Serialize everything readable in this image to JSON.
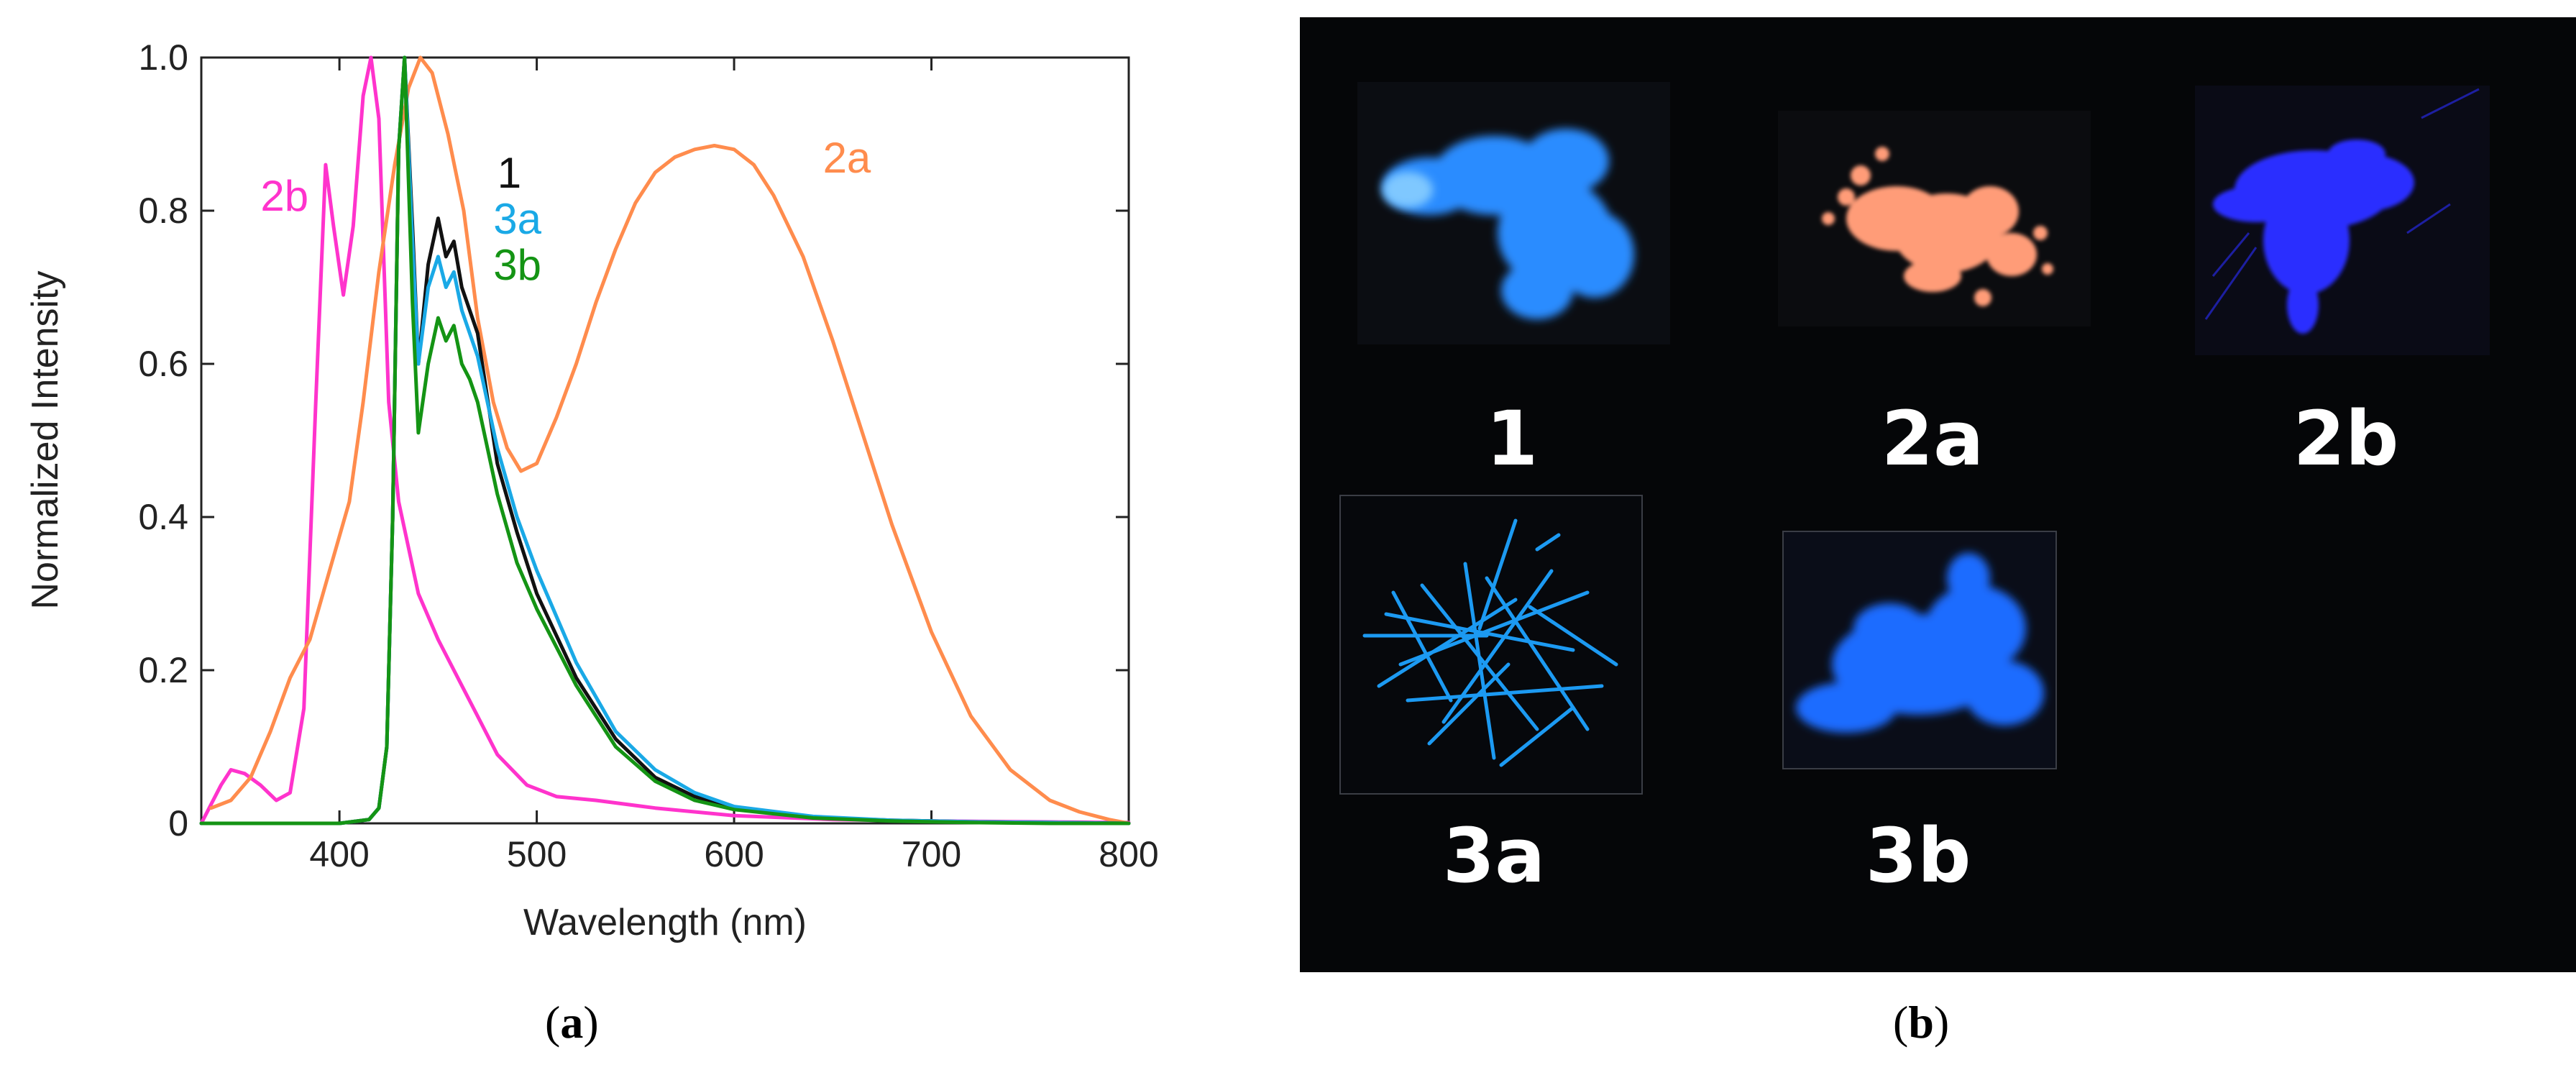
{
  "chart_data": {
    "type": "line",
    "xlabel": "Wavelength (nm)",
    "ylabel": "Normalized Intensity",
    "xlim": [
      330,
      800
    ],
    "ylim": [
      0,
      1.0
    ],
    "x_ticks": [
      400,
      500,
      600,
      700,
      800
    ],
    "y_ticks": [
      0,
      0.2,
      0.4,
      0.6,
      0.8,
      1.0
    ],
    "y_tick_labels": [
      "0",
      "0.2",
      "0.4",
      "0.6",
      "0.8",
      "1.0"
    ],
    "grid": false,
    "series": [
      {
        "name": "2b",
        "color": "#ff33cc",
        "x": [
          330,
          340,
          345,
          352,
          360,
          368,
          375,
          382,
          388,
          393,
          397,
          402,
          407,
          412,
          416,
          420,
          425,
          430,
          435,
          440,
          450,
          460,
          470,
          480,
          495,
          510,
          530,
          560,
          600,
          650,
          700,
          750,
          800
        ],
        "y": [
          0.0,
          0.05,
          0.07,
          0.065,
          0.05,
          0.03,
          0.04,
          0.15,
          0.55,
          0.86,
          0.78,
          0.69,
          0.78,
          0.95,
          1.0,
          0.92,
          0.55,
          0.42,
          0.36,
          0.3,
          0.24,
          0.19,
          0.14,
          0.09,
          0.05,
          0.035,
          0.03,
          0.02,
          0.01,
          0.005,
          0.003,
          0.002,
          0.001
        ]
      },
      {
        "name": "2a",
        "color": "#ff8c4d",
        "x": [
          335,
          345,
          355,
          365,
          375,
          385,
          395,
          405,
          412,
          420,
          428,
          435,
          441,
          447,
          455,
          463,
          470,
          478,
          485,
          492,
          500,
          510,
          520,
          530,
          540,
          550,
          560,
          570,
          580,
          590,
          600,
          610,
          620,
          635,
          650,
          665,
          680,
          700,
          720,
          740,
          760,
          775,
          790,
          800
        ],
        "y": [
          0.02,
          0.03,
          0.06,
          0.12,
          0.19,
          0.24,
          0.33,
          0.42,
          0.55,
          0.72,
          0.86,
          0.96,
          1.0,
          0.98,
          0.9,
          0.8,
          0.66,
          0.55,
          0.49,
          0.46,
          0.47,
          0.53,
          0.6,
          0.68,
          0.75,
          0.81,
          0.85,
          0.87,
          0.88,
          0.885,
          0.88,
          0.86,
          0.82,
          0.74,
          0.63,
          0.51,
          0.39,
          0.25,
          0.14,
          0.07,
          0.03,
          0.015,
          0.005,
          0.0
        ]
      },
      {
        "name": "1",
        "color": "#111111",
        "x": [
          330,
          400,
          415,
          420,
          424,
          427,
          430,
          433,
          437,
          440,
          445,
          450,
          454,
          458,
          462,
          466,
          470,
          480,
          490,
          500,
          520,
          540,
          560,
          580,
          600,
          640,
          680,
          720,
          760,
          800
        ],
        "y": [
          0.0,
          0.0,
          0.005,
          0.02,
          0.1,
          0.4,
          0.88,
          1.0,
          0.78,
          0.6,
          0.73,
          0.79,
          0.74,
          0.76,
          0.7,
          0.67,
          0.64,
          0.47,
          0.38,
          0.3,
          0.19,
          0.11,
          0.06,
          0.035,
          0.02,
          0.008,
          0.004,
          0.002,
          0.001,
          0.0
        ]
      },
      {
        "name": "3a",
        "color": "#1aa9e6",
        "x": [
          330,
          400,
          415,
          420,
          424,
          427,
          430,
          433,
          437,
          440,
          445,
          450,
          454,
          458,
          462,
          466,
          470,
          480,
          490,
          500,
          520,
          540,
          560,
          580,
          600,
          640,
          680,
          720,
          760,
          800
        ],
        "y": [
          0.0,
          0.0,
          0.005,
          0.02,
          0.1,
          0.4,
          0.88,
          1.0,
          0.76,
          0.6,
          0.7,
          0.74,
          0.7,
          0.72,
          0.67,
          0.64,
          0.61,
          0.49,
          0.4,
          0.33,
          0.21,
          0.12,
          0.07,
          0.04,
          0.022,
          0.009,
          0.004,
          0.002,
          0.001,
          0.0
        ]
      },
      {
        "name": "3b",
        "color": "#149414",
        "x": [
          330,
          400,
          415,
          420,
          424,
          427,
          430,
          433,
          437,
          440,
          445,
          450,
          454,
          458,
          462,
          466,
          470,
          480,
          490,
          500,
          520,
          540,
          560,
          580,
          600,
          640,
          680,
          720,
          760,
          800
        ],
        "y": [
          0.0,
          0.0,
          0.005,
          0.02,
          0.1,
          0.4,
          0.88,
          1.0,
          0.68,
          0.51,
          0.6,
          0.66,
          0.63,
          0.65,
          0.6,
          0.58,
          0.55,
          0.43,
          0.34,
          0.28,
          0.18,
          0.1,
          0.055,
          0.03,
          0.018,
          0.007,
          0.003,
          0.001,
          0.0,
          0.0
        ]
      }
    ],
    "series_labels": [
      {
        "text": "2b",
        "color": "#ff33cc",
        "x": 360,
        "y": 0.8
      },
      {
        "text": "1",
        "color": "#111111",
        "x": 480,
        "y": 0.83
      },
      {
        "text": "3a",
        "color": "#1aa9e6",
        "x": 478,
        "y": 0.77
      },
      {
        "text": "3b",
        "color": "#149414",
        "x": 478,
        "y": 0.71
      },
      {
        "text": "2a",
        "color": "#ff8c4d",
        "x": 645,
        "y": 0.85
      }
    ]
  },
  "captions": {
    "a_open": "(",
    "a_letter": "a",
    "a_close": ")",
    "b_open": "(",
    "b_letter": "b",
    "b_close": ")"
  },
  "photos": {
    "label_1": "1",
    "label_2a": "2a",
    "label_2b": "2b",
    "label_3a": "3a",
    "label_3b": "3b",
    "colors": {
      "sample_1": "#2a8cff",
      "sample_2a": "#ff9c78",
      "sample_2b": "#2a2dff",
      "sample_3a": "#1ea2ff",
      "sample_3b": "#1f6cff",
      "background": "#050608"
    }
  }
}
